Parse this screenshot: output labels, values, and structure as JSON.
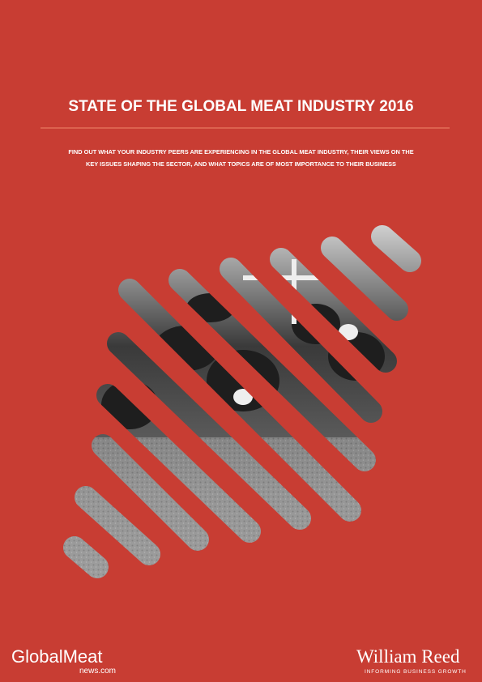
{
  "header": {
    "title": "STATE OF THE GLOBAL MEAT INDUSTRY 2016",
    "subtitle_lines": [
      "FIND OUT WHAT YOUR INDUSTRY PEERS ARE EXPERIENCING IN THE GLOBAL MEAT INDUSTRY, THEIR VIEWS ON THE",
      "KEY ISSUES SHAPING THE SECTOR, AND WHAT TOPICS ARE OF MOST IMPORTANCE TO THEIR BUSINESS"
    ]
  },
  "footer": {
    "left_logo": {
      "name": "GlobalMeat",
      "domain": "news.com"
    },
    "right_logo": {
      "name": "William Reed",
      "tagline": "INFORMING BUSINESS GROWTH"
    }
  }
}
